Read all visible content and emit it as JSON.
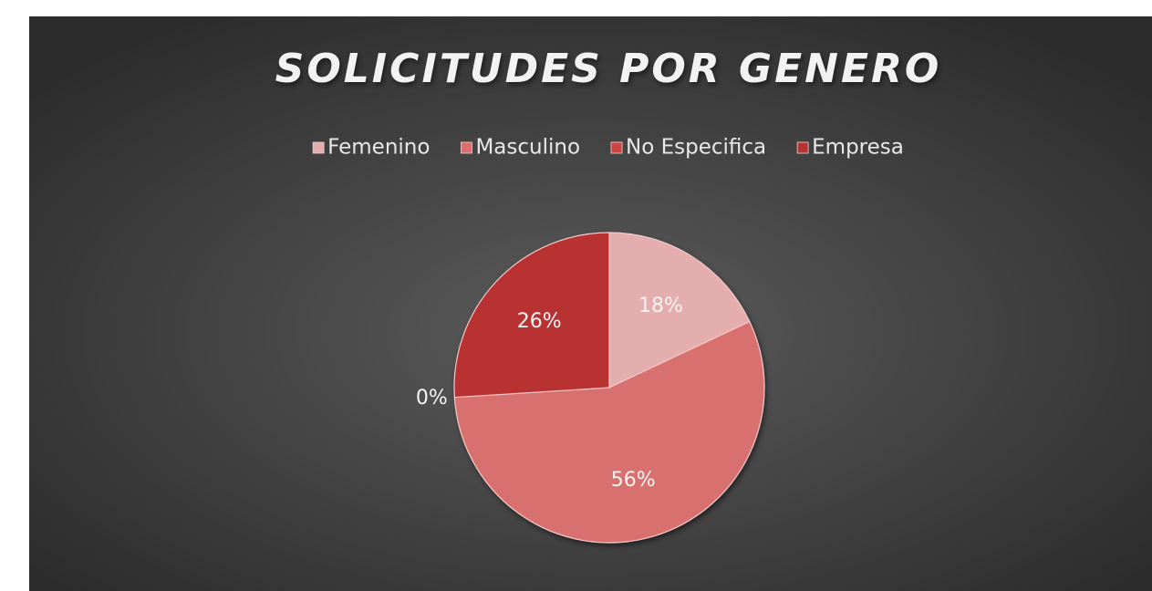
{
  "chart_data": {
    "type": "pie",
    "title": "SOLICITUDES POR GENERO",
    "categories": [
      "Femenino",
      "Masculino",
      "No Especifica",
      "Empresa"
    ],
    "values": [
      18,
      56,
      0,
      26
    ],
    "value_labels": [
      "18%",
      "56%",
      "0%",
      "26%"
    ],
    "colors": [
      "#e5aeae",
      "#d96f6f",
      "#cc4444",
      "#b93232"
    ],
    "legend": "top"
  }
}
